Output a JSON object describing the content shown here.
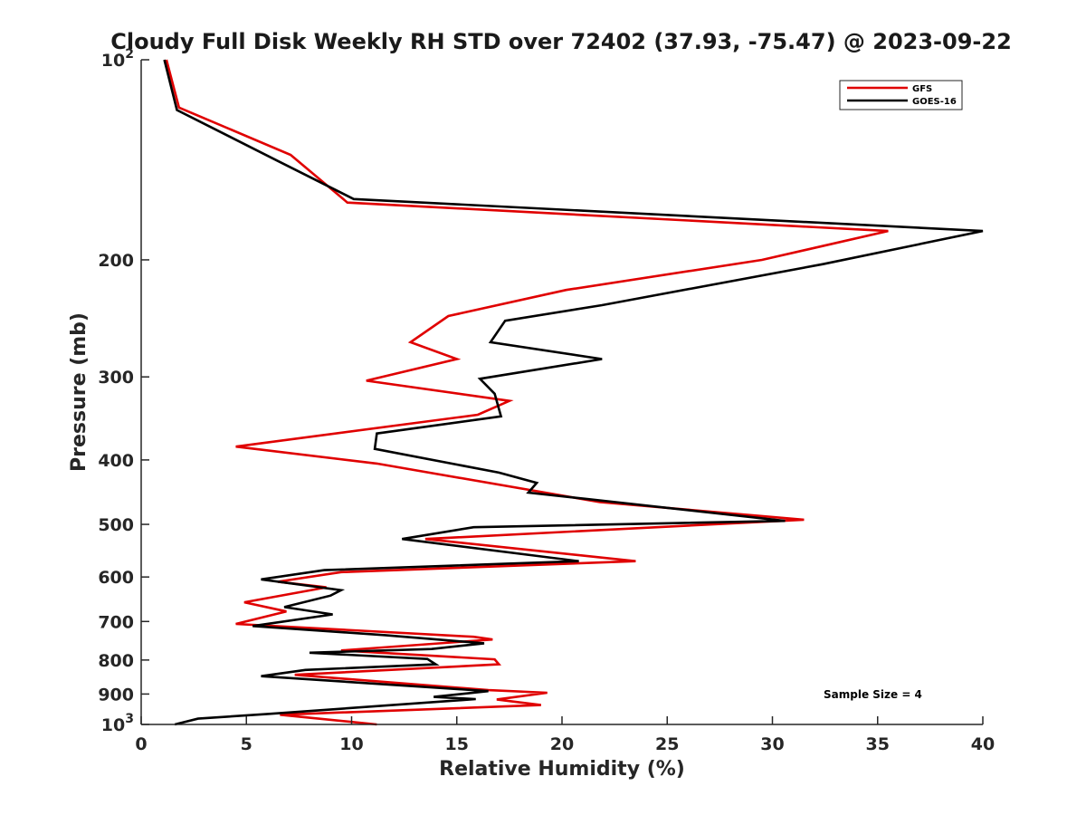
{
  "chart_data": {
    "type": "line",
    "title": "Cloudy Full Disk Weekly RH STD over 72402 (37.93, -75.47) @ 2023-09-22",
    "xlabel": "Relative Humidity (%)",
    "ylabel": "Pressure (mb)",
    "xlim": [
      0,
      40
    ],
    "ylim": [
      100,
      1000
    ],
    "y_scale": "log",
    "y_reversed": true,
    "x_ticks": [
      0,
      5,
      10,
      15,
      20,
      25,
      30,
      35,
      40
    ],
    "x_tick_labels": [
      "0",
      "5",
      "10",
      "15",
      "20",
      "25",
      "30",
      "35",
      "40"
    ],
    "y_ticks": [
      100,
      200,
      300,
      400,
      500,
      600,
      700,
      800,
      900,
      1000
    ],
    "y_tick_labels": [
      {
        "base": "10",
        "exp": "2"
      },
      {
        "base": "200",
        "exp": ""
      },
      {
        "base": "300",
        "exp": ""
      },
      {
        "base": "400",
        "exp": ""
      },
      {
        "base": "500",
        "exp": ""
      },
      {
        "base": "600",
        "exp": ""
      },
      {
        "base": "700",
        "exp": ""
      },
      {
        "base": "800",
        "exp": ""
      },
      {
        "base": "900",
        "exp": ""
      },
      {
        "base": "10",
        "exp": "3"
      }
    ],
    "grid": false,
    "legend_position": "top-right",
    "annotation": "Sample Size = 4",
    "series": [
      {
        "name": "GFS",
        "color": "#e00000",
        "points": [
          [
            1.2,
            100
          ],
          [
            1.8,
            118
          ],
          [
            7.1,
            139
          ],
          [
            9.8,
            164
          ],
          [
            35.5,
            181
          ],
          [
            29.5,
            200
          ],
          [
            20.2,
            222
          ],
          [
            14.6,
            243
          ],
          [
            12.8,
            266
          ],
          [
            15.0,
            282
          ],
          [
            10.7,
            304
          ],
          [
            17.5,
            326
          ],
          [
            16.0,
            342
          ],
          [
            4.5,
            382
          ],
          [
            11.2,
            405
          ],
          [
            21.8,
            463
          ],
          [
            31.5,
            492
          ],
          [
            13.5,
            526
          ],
          [
            23.5,
            568
          ],
          [
            9.5,
            590
          ],
          [
            6.5,
            610
          ],
          [
            8.8,
            622
          ],
          [
            4.9,
            655
          ],
          [
            6.9,
            676
          ],
          [
            4.5,
            706
          ],
          [
            15.8,
            738
          ],
          [
            16.7,
            745
          ],
          [
            9.5,
            774
          ],
          [
            16.8,
            798
          ],
          [
            17.0,
            812
          ],
          [
            7.3,
            842
          ],
          [
            16.5,
            888
          ],
          [
            19.3,
            896
          ],
          [
            16.9,
            917
          ],
          [
            19.0,
            935
          ],
          [
            6.6,
            967
          ],
          [
            11.2,
            1000
          ]
        ]
      },
      {
        "name": "GOES-16",
        "color": "#000000",
        "points": [
          [
            1.1,
            100
          ],
          [
            1.7,
            119
          ],
          [
            6.5,
            142
          ],
          [
            10.1,
            162
          ],
          [
            40.0,
            181
          ],
          [
            32.4,
            203
          ],
          [
            21.9,
            234
          ],
          [
            17.3,
            247
          ],
          [
            16.6,
            266
          ],
          [
            21.9,
            282
          ],
          [
            16.1,
            302
          ],
          [
            16.8,
            318
          ],
          [
            17.1,
            344
          ],
          [
            11.2,
            365
          ],
          [
            11.1,
            385
          ],
          [
            17.0,
            418
          ],
          [
            18.8,
            433
          ],
          [
            18.4,
            448
          ],
          [
            21.2,
            458
          ],
          [
            30.6,
            494
          ],
          [
            15.8,
            505
          ],
          [
            12.4,
            526
          ],
          [
            20.8,
            568
          ],
          [
            8.7,
            586
          ],
          [
            5.7,
            605
          ],
          [
            9.5,
            628
          ],
          [
            9.0,
            640
          ],
          [
            6.8,
            666
          ],
          [
            9.1,
            683
          ],
          [
            5.3,
            711
          ],
          [
            11.6,
            734
          ],
          [
            16.3,
            755
          ],
          [
            13.8,
            770
          ],
          [
            8.0,
            780
          ],
          [
            13.6,
            797
          ],
          [
            14.0,
            812
          ],
          [
            7.8,
            828
          ],
          [
            5.7,
            846
          ],
          [
            16.5,
            891
          ],
          [
            13.9,
            909
          ],
          [
            15.9,
            916
          ],
          [
            6.1,
            964
          ],
          [
            2.7,
            980
          ],
          [
            1.6,
            1000
          ]
        ]
      }
    ]
  }
}
